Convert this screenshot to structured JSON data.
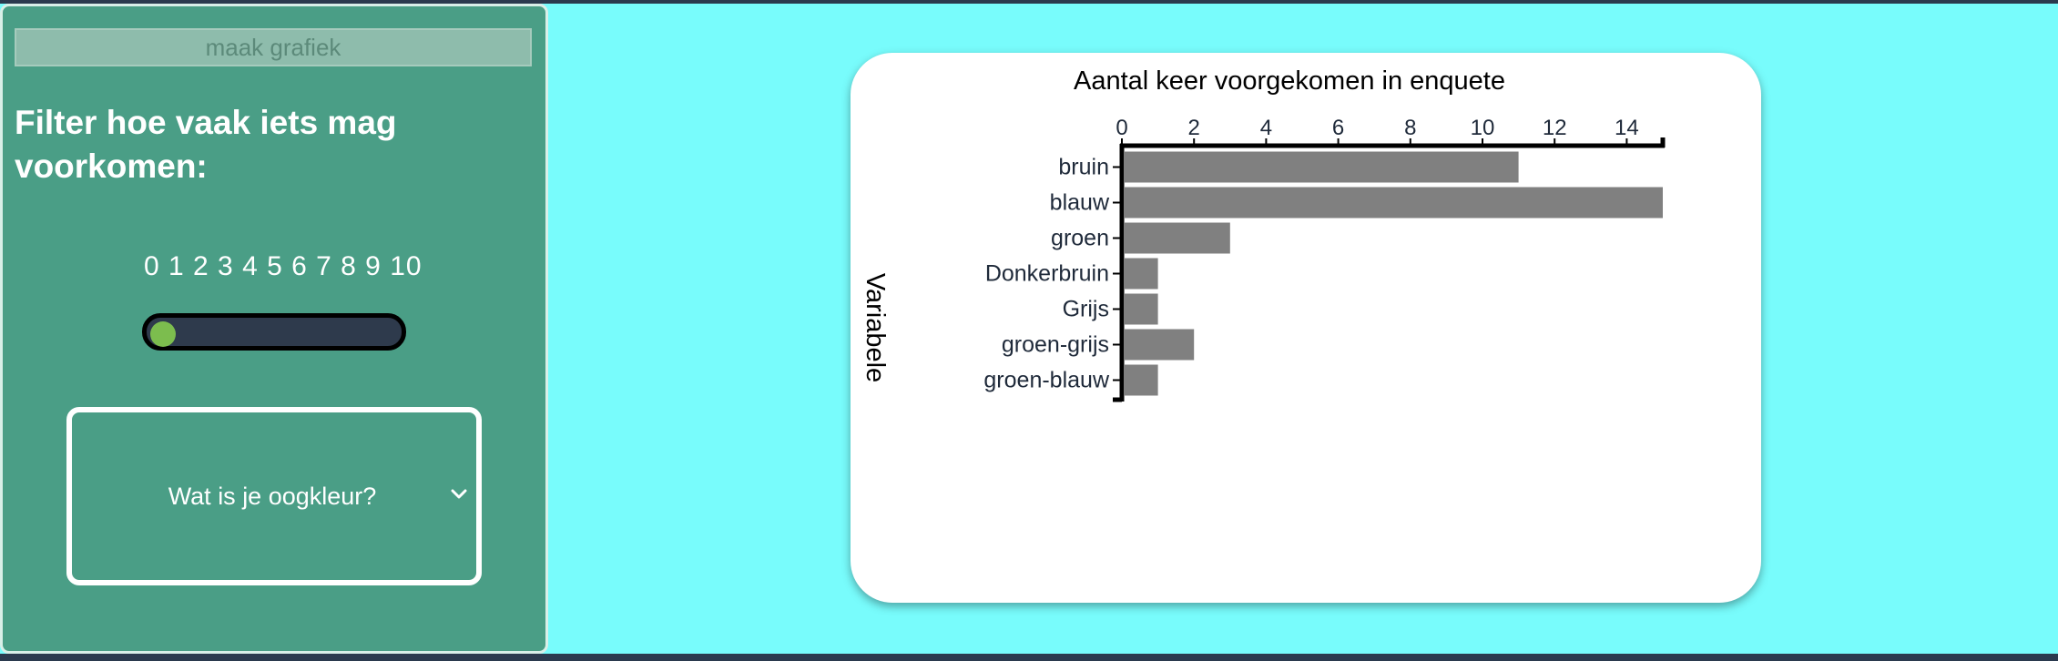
{
  "sidebar": {
    "make_chart_label": "maak grafiek",
    "filter_heading": "Filter hoe vaak iets mag voorkomen:",
    "slider": {
      "scale_labels": "0 1 2 3 4 5 6 7 8 9 10",
      "min": 0,
      "max": 10,
      "value": 0,
      "thumb_color": "#7cbd4e"
    },
    "question_select": {
      "selected": "Wat is je oogkleur?",
      "icon": "chevron-down-icon"
    }
  },
  "colors": {
    "page_background": "#78fcfc",
    "sidebar_background": "#4a9e86",
    "bar_color": "#808080"
  },
  "chart_data": {
    "type": "bar",
    "orientation": "horizontal",
    "title": "Aantal keer voorgekomen in enquete",
    "ylabel": "Variabele",
    "xlabel": "",
    "x_axis_position": "top",
    "xlim": [
      0,
      15
    ],
    "x_ticks": [
      0,
      2,
      4,
      6,
      8,
      10,
      12,
      14
    ],
    "categories": [
      "bruin",
      "blauw",
      "groen",
      "Donkerbruin",
      "Grijs",
      "groen-grijs",
      "groen-blauw"
    ],
    "values": [
      11,
      15,
      3,
      1,
      1,
      2,
      1
    ],
    "grid": false,
    "legend": "none"
  }
}
